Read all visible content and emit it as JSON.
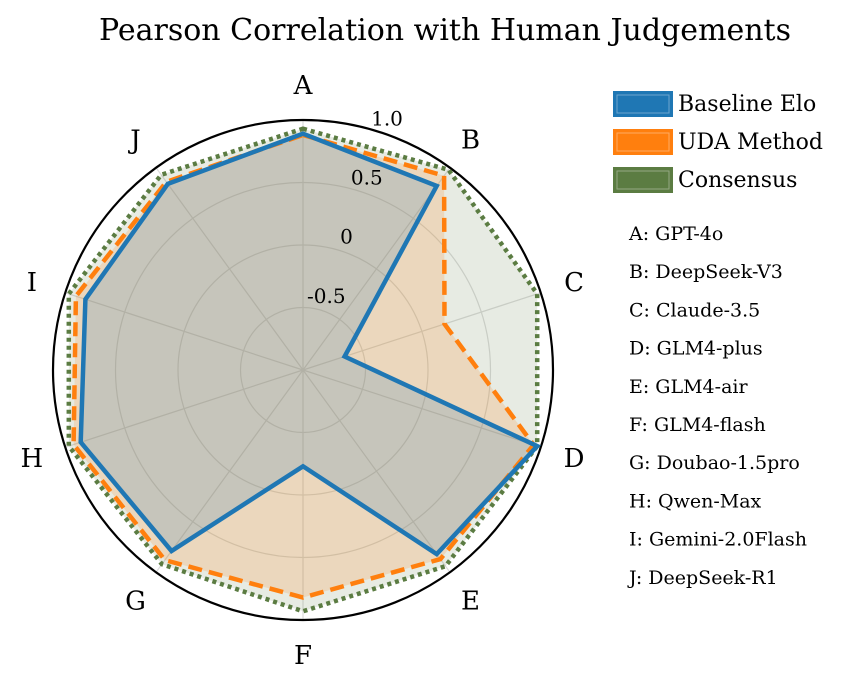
{
  "chart_data": {
    "type": "radar",
    "title": "Pearson Correlation with Human Judgements",
    "categories": [
      "A",
      "B",
      "C",
      "D",
      "E",
      "F",
      "G",
      "H",
      "I",
      "J"
    ],
    "rlim": [
      -1.0,
      1.0
    ],
    "rticks": [
      -0.5,
      0,
      0.5,
      1.0
    ],
    "rtick_labels": [
      "-0.5",
      "0",
      "0.5",
      "1.0"
    ],
    "grid": true,
    "series": [
      {
        "name": "Baseline Elo",
        "color": "#1f77b4",
        "linestyle": "solid",
        "values": [
          0.89,
          0.82,
          -0.65,
          0.97,
          0.82,
          -0.23,
          0.79,
          0.87,
          0.83,
          0.84
        ]
      },
      {
        "name": "UDA Method",
        "color": "#ff7f0e",
        "linestyle": "dashed",
        "values": [
          0.88,
          0.92,
          0.19,
          0.94,
          0.87,
          0.82,
          0.88,
          0.93,
          0.91,
          0.86
        ]
      },
      {
        "name": "Consensus",
        "color": "#5b7c42",
        "linestyle": "dotted",
        "values": [
          0.93,
          0.98,
          0.97,
          0.97,
          0.94,
          0.93,
          0.92,
          0.97,
          0.97,
          0.93
        ]
      }
    ],
    "legend_position": "top-right",
    "category_key": [
      "A: GPT-4o",
      "B: DeepSeek-V3",
      "C: Claude-3.5",
      "D: GLM4-plus",
      "E: GLM4-air",
      "F: GLM4-flash",
      "G: Doubao-1.5pro",
      "H: Qwen-Max",
      "I: Gemini-2.0Flash",
      "J: DeepSeek-R1"
    ]
  }
}
